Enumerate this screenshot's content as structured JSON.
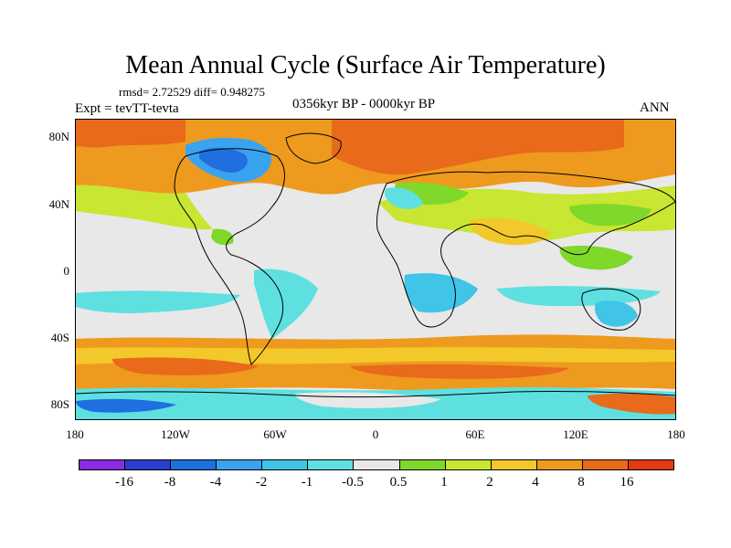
{
  "title": "Mean Annual Cycle (Surface Air Temperature)",
  "stats": "rmsd= 2.72529 diff= 0.948275",
  "experiment": "Expt = tevTT-tevta",
  "period": "0356kyr BP - 0000kyr BP",
  "season": "ANN",
  "lat_labels": [
    "80N",
    "40N",
    "0",
    "40S",
    "80S"
  ],
  "lon_labels": [
    "180",
    "120W",
    "60W",
    "0",
    "60E",
    "120E",
    "180"
  ],
  "colorbar": {
    "colors": [
      "#8a2be2",
      "#2a3dcc",
      "#1f6fe0",
      "#3aa3ef",
      "#40c4e8",
      "#5ee0e0",
      "#e8e8e8",
      "#7fd82a",
      "#c8e632",
      "#f2c82a",
      "#ee9a1e",
      "#e86a1a",
      "#e23a12"
    ],
    "labels": [
      "-16",
      "-8",
      "-4",
      "-2",
      "-1",
      "-0.5",
      "0.5",
      "1",
      "2",
      "4",
      "8",
      "16"
    ]
  }
}
